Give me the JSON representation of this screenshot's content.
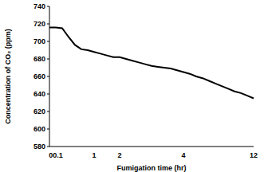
{
  "chart_data": {
    "type": "line",
    "x_label": "Fumigation time (hr)",
    "y_label": "Concentration of CO₂ (ppm)",
    "categories": [
      null,
      "00.1",
      null,
      null,
      null,
      null,
      null,
      "1",
      null,
      null,
      null,
      "2",
      null,
      null,
      null,
      null,
      null,
      null,
      null,
      null,
      null,
      "4",
      null,
      null,
      null,
      null,
      null,
      null,
      null,
      null,
      null,
      null,
      "12"
    ],
    "values": [
      716,
      716,
      715,
      705,
      696,
      691,
      690,
      688,
      686,
      684,
      682,
      682,
      680,
      678,
      676,
      674,
      672,
      671,
      670,
      669,
      667,
      665,
      663,
      660,
      658,
      655,
      652,
      649,
      646,
      643,
      641,
      638,
      635
    ],
    "color": "#000000",
    "ylim": [
      580,
      740
    ],
    "yticks": [
      580,
      600,
      620,
      640,
      660,
      680,
      700,
      720,
      740
    ],
    "grid": false
  }
}
